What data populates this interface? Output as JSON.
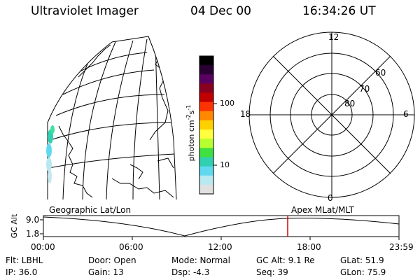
{
  "header": {
    "instrument": "Ultraviolet Imager",
    "date": "04 Dec 00",
    "time": "16:34:26 UT"
  },
  "colorbar": {
    "unit": "photon cm",
    "unit_exp": "-2",
    "unit_s": "s",
    "unit_s_exp": "-1",
    "ticks": [
      "100",
      "10"
    ],
    "scale": "log",
    "colors": [
      "#000000",
      "#2a0033",
      "#5a0060",
      "#8a0020",
      "#c00000",
      "#ff3300",
      "#ff8800",
      "#ffd000",
      "#ffff40",
      "#b8ff30",
      "#40e040",
      "#30d0b0",
      "#60d8f0",
      "#b8e8f0",
      "#e0e0e0"
    ]
  },
  "geo_map": {
    "label": "Geographic Lat/Lon"
  },
  "polar_plot": {
    "label": "Apex MLat/MLT",
    "mlt_labels": {
      "top": "12",
      "left": "18",
      "right": "6",
      "bottom": "0"
    },
    "lat_labels": [
      "60",
      "70",
      "80"
    ]
  },
  "altitude_plot": {
    "ylabel": "GC Alt",
    "ymax": "9.0",
    "ymin": "1.8",
    "xticks": [
      "00:00",
      "06:00",
      "12:00",
      "18:00",
      "23:59"
    ],
    "current_marker": "16:34"
  },
  "status": {
    "flt": "Flt: LBHL",
    "ip": "IP: 36.0",
    "door": "Door: Open",
    "gain": "Gain: 13",
    "mode": "Mode: Normal",
    "dsp": "Dsp:    -4.3",
    "gcalt": "GC Alt: 9.1 Re",
    "seq": "Seq: 39",
    "glat": "GLat:   51.9",
    "glon": "GLon:   75.9"
  }
}
